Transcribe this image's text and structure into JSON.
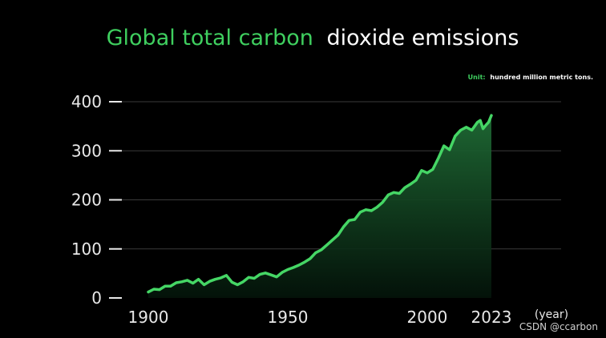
{
  "chart_data": {
    "type": "area",
    "title_highlight": "Global total carbon",
    "title_rest": "dioxide emissions",
    "unit_label": "Unit:",
    "unit_text": "hundred million metric tons.",
    "xlabel": "(year)",
    "ylabel": "",
    "xlim": [
      1900,
      2023
    ],
    "ylim": [
      0,
      400
    ],
    "grid": true,
    "colors": {
      "accent": "#3fcf5f",
      "line": "#45d665",
      "fill_top": "#1f6b35",
      "fill_bottom": "#04140a",
      "grid": "#3a3a3a",
      "text": "#e8e8e8"
    },
    "y_ticks": [
      {
        "value": 0,
        "label": "0"
      },
      {
        "value": 100,
        "label": "100"
      },
      {
        "value": 200,
        "label": "200"
      },
      {
        "value": 300,
        "label": "300"
      },
      {
        "value": 400,
        "label": "400"
      }
    ],
    "x_ticks": [
      {
        "value": 1900,
        "label": "1900"
      },
      {
        "value": 1950,
        "label": "1950"
      },
      {
        "value": 2000,
        "label": "2000"
      },
      {
        "value": 2023,
        "label": "2023"
      }
    ],
    "series": [
      {
        "x": [
          1900,
          1902,
          1904,
          1906,
          1908,
          1910,
          1912,
          1914,
          1916,
          1918,
          1920,
          1922,
          1924,
          1926,
          1928,
          1930,
          1932,
          1934,
          1936,
          1938,
          1940,
          1942,
          1944,
          1946,
          1948,
          1950,
          1952,
          1954,
          1956,
          1958,
          1960,
          1962,
          1964,
          1966,
          1968,
          1970,
          1972,
          1974,
          1976,
          1978,
          1980,
          1982,
          1984,
          1986,
          1988,
          1990,
          1992,
          1994,
          1996,
          1998,
          2000,
          2002,
          2004,
          2006,
          2008,
          2010,
          2012,
          2014,
          2016,
          2018,
          2019,
          2020,
          2021,
          2022,
          2023
        ],
        "values": [
          12,
          18,
          17,
          24,
          24,
          31,
          33,
          36,
          30,
          38,
          27,
          34,
          38,
          41,
          46,
          32,
          27,
          33,
          42,
          40,
          48,
          51,
          47,
          43,
          52,
          58,
          62,
          67,
          73,
          80,
          92,
          98,
          108,
          118,
          128,
          145,
          158,
          160,
          175,
          180,
          178,
          185,
          195,
          210,
          215,
          213,
          225,
          232,
          240,
          260,
          255,
          262,
          285,
          310,
          302,
          330,
          342,
          348,
          342,
          358,
          362,
          345,
          352,
          358,
          372
        ]
      }
    ]
  },
  "watermark": "CSDN @ccarbon"
}
